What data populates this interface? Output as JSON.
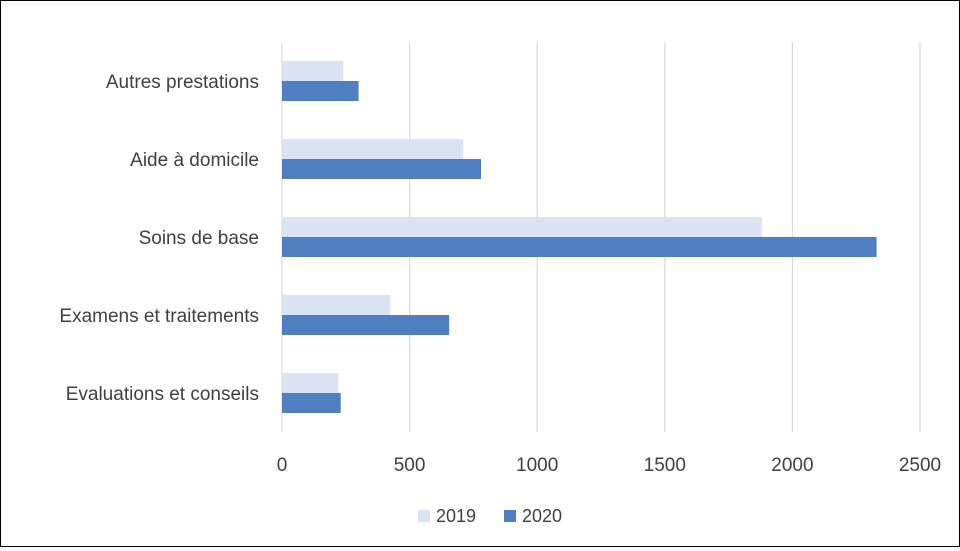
{
  "chart_data": {
    "type": "bar",
    "orientation": "horizontal",
    "categories": [
      "Evaluations et conseils",
      "Examens et traitements",
      "Soins de base",
      "Aide à domicile",
      "Autres prestations"
    ],
    "series": [
      {
        "name": "2019",
        "color": "#dae3f3",
        "values": [
          220,
          425,
          1880,
          710,
          240
        ]
      },
      {
        "name": "2020",
        "color": "#4f7fc0",
        "values": [
          230,
          655,
          2330,
          780,
          300
        ]
      }
    ],
    "xlim": [
      0,
      2500
    ],
    "xticks": [
      "0",
      "500",
      "1000",
      "1500",
      "2000",
      "2500"
    ],
    "xtick_values": [
      0,
      500,
      1000,
      1500,
      2000,
      2500
    ],
    "grid": "vertical",
    "legend": "bottom-center",
    "gridline_color": "#d9d9d9",
    "text_color": "#404040"
  }
}
